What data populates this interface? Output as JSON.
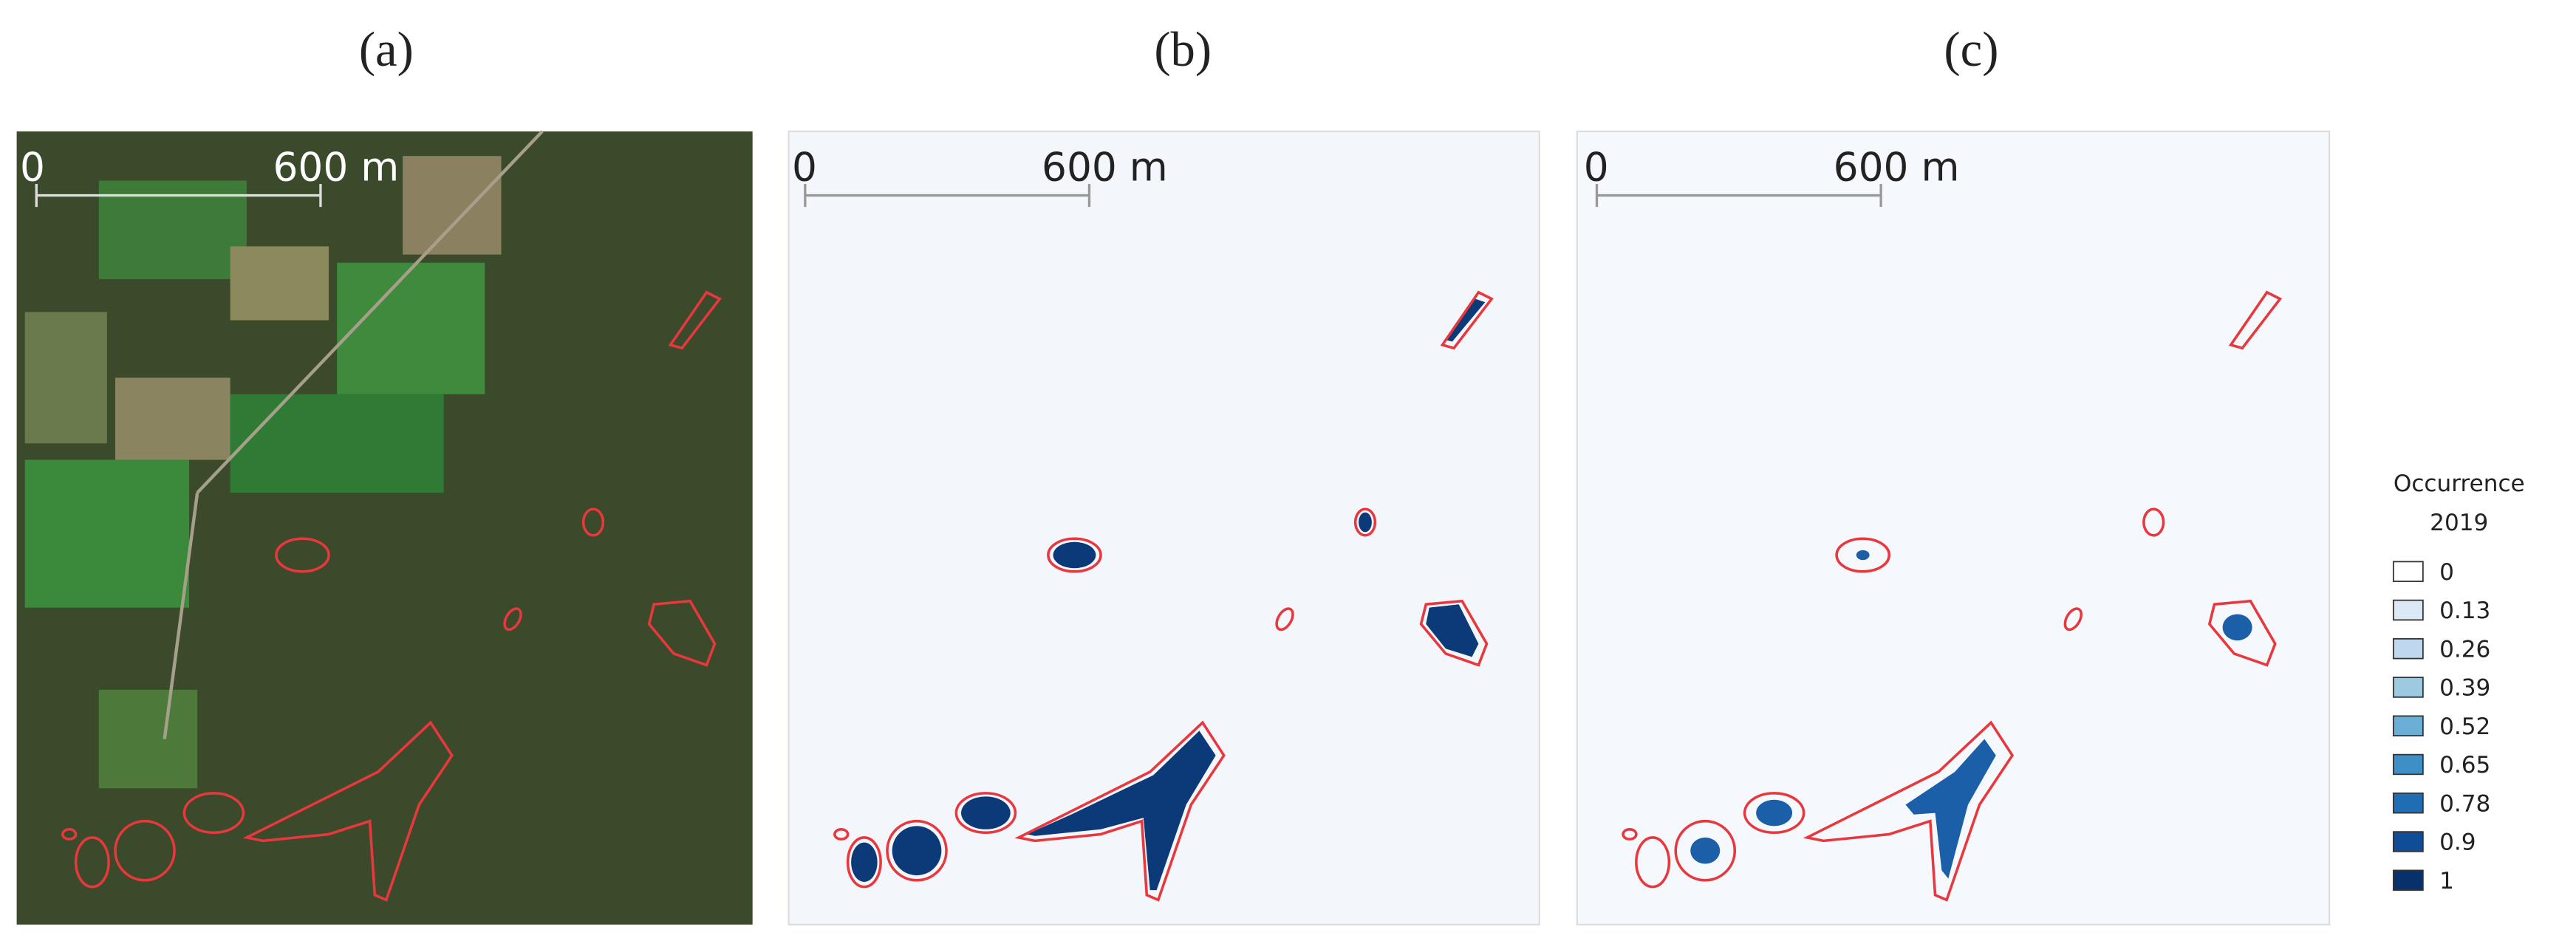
{
  "panels": [
    {
      "label": "(a)",
      "scale_start": "0",
      "scale_end": "600 m"
    },
    {
      "label": "(b)",
      "scale_start": "0",
      "scale_end": "600 m"
    },
    {
      "label": "(c)",
      "scale_start": "0",
      "scale_end": "600 m"
    }
  ],
  "legend": {
    "title": [
      "Occurrence",
      "2019"
    ],
    "entries": [
      "0",
      "0.13",
      "0.26",
      "0.39",
      "0.52",
      "0.65",
      "0.78",
      "0.9",
      "1"
    ],
    "colors": [
      "#ffffff",
      "#dbe9f6",
      "#c0d8ee",
      "#9ecae1",
      "#6baed6",
      "#3d8fc6",
      "#1f6db3",
      "#0f4d99",
      "#08306b"
    ]
  }
}
